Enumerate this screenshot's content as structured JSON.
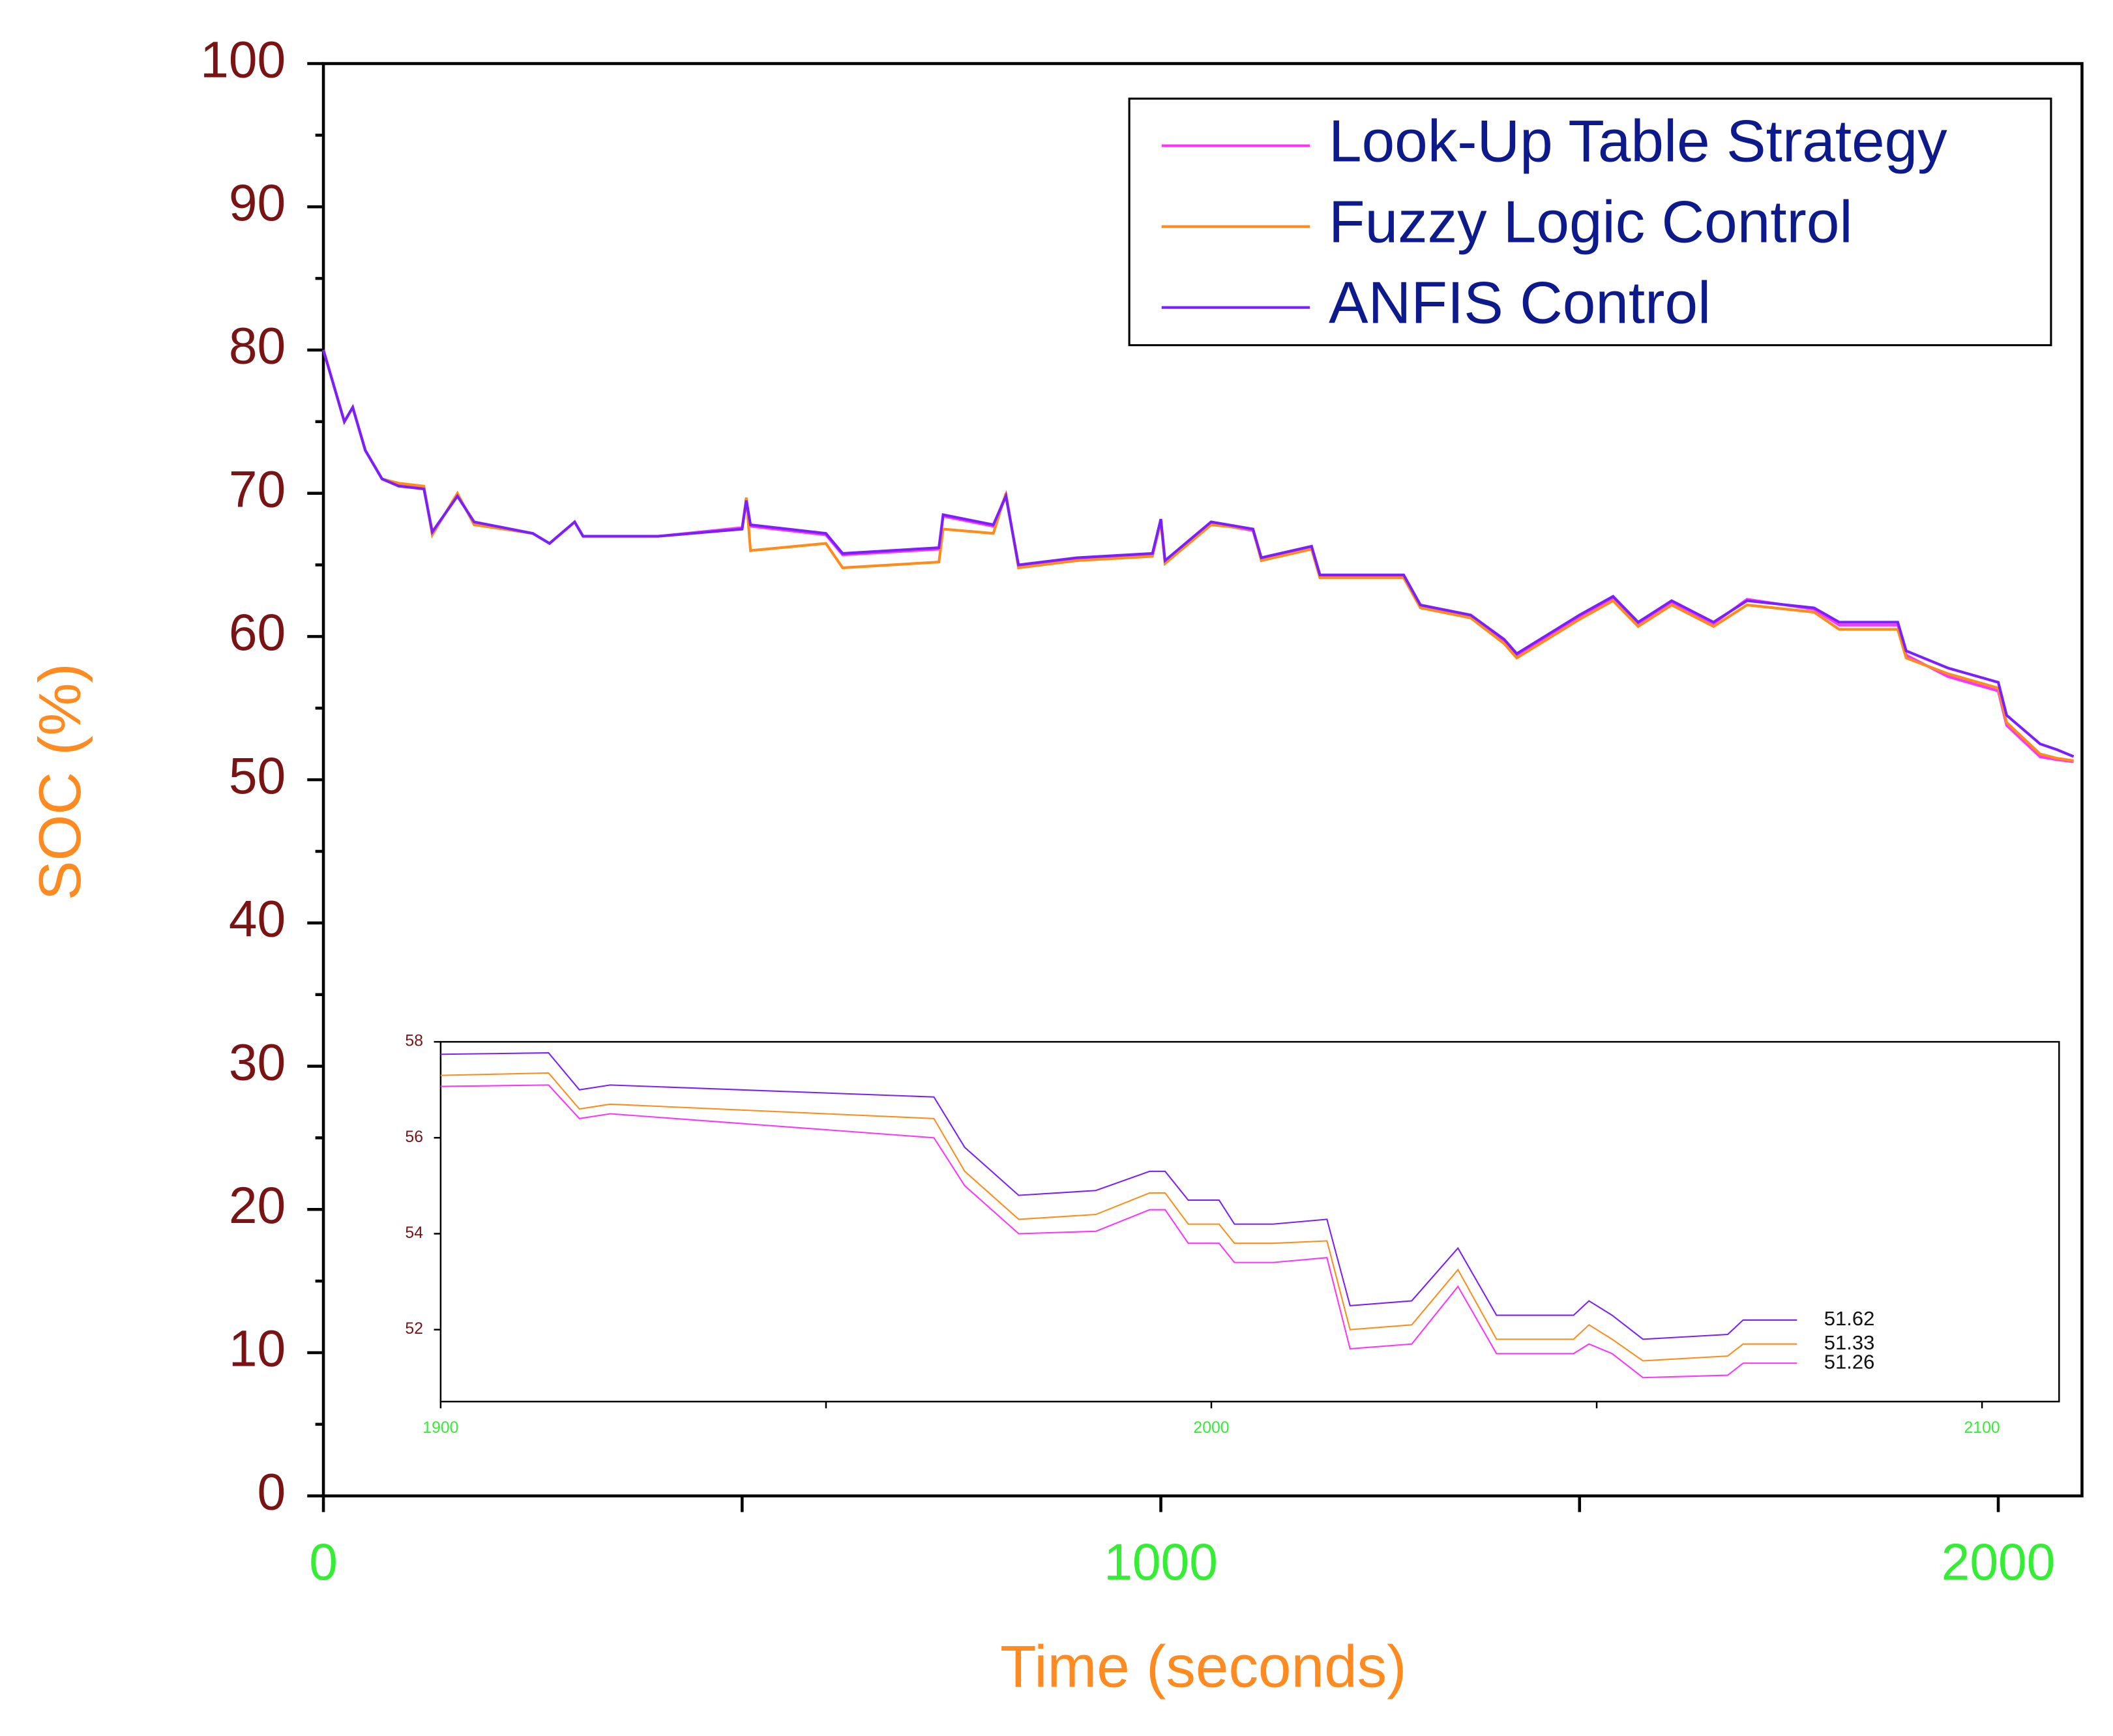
{
  "chart_data": [
    {
      "type": "line",
      "xlabel": "Time (seconds)",
      "ylabel": "SOC (%)",
      "xlim": [
        0,
        2100
      ],
      "ylim": [
        0,
        100
      ],
      "xticks": [
        0,
        1000,
        2000
      ],
      "xminor": [
        500,
        1500
      ],
      "yticks": [
        0,
        10,
        20,
        30,
        40,
        50,
        60,
        70,
        80,
        90,
        100
      ],
      "yminor": [
        5,
        15,
        25,
        35,
        45,
        55,
        65,
        75,
        85,
        95
      ],
      "legend": true,
      "legend_position": "upper right",
      "x": [
        0,
        10,
        25,
        35,
        50,
        70,
        90,
        120,
        130,
        160,
        180,
        250,
        270,
        300,
        310,
        400,
        500,
        505,
        510,
        600,
        620,
        735,
        740,
        800,
        815,
        830,
        900,
        990,
        1000,
        1005,
        1060,
        1110,
        1120,
        1180,
        1190,
        1290,
        1310,
        1370,
        1410,
        1425,
        1450,
        1500,
        1540,
        1570,
        1610,
        1660,
        1700,
        1780,
        1810,
        1880,
        1890,
        1940,
        2000,
        2010,
        2050,
        2070,
        2090
      ],
      "series": [
        {
          "name": "Look-Up Table Strategy",
          "color": "#ff33ff",
          "values": [
            80,
            78,
            75,
            76,
            73,
            71,
            70.6,
            70.4,
            67.2,
            69.9,
            67.9,
            67.2,
            66.5,
            68,
            67,
            67,
            67.6,
            69.6,
            67.7,
            67.1,
            65.7,
            66.1,
            68.4,
            67.7,
            69.9,
            64.9,
            65.4,
            65.7,
            68.1,
            65.2,
            67.9,
            67.4,
            65.4,
            66.2,
            64.2,
            64.2,
            62.1,
            61.4,
            59.7,
            58.6,
            59.6,
            61.4,
            62.7,
            60.9,
            62.4,
            60.9,
            62.6,
            61.9,
            60.8,
            60.8,
            58.7,
            57.2,
            56.2,
            53.8,
            51.6,
            51.4,
            51.26
          ]
        },
        {
          "name": "Fuzzy Logic Control",
          "color": "#ff8c1a",
          "values": [
            80,
            78,
            75,
            76,
            73,
            71,
            70.7,
            70.5,
            67.1,
            70,
            67.8,
            67.2,
            66.5,
            68,
            67,
            67,
            67.5,
            69.7,
            66,
            66.5,
            64.8,
            65.2,
            67.5,
            67.2,
            70,
            64.8,
            65.3,
            65.6,
            68,
            65.1,
            67.8,
            67.5,
            65.3,
            66.1,
            64.1,
            64.1,
            62,
            61.3,
            59.5,
            58.5,
            59.4,
            61.2,
            62.5,
            60.7,
            62.2,
            60.7,
            62.2,
            61.7,
            60.5,
            60.5,
            58.5,
            57.4,
            56.4,
            54,
            51.8,
            51.5,
            51.33
          ]
        },
        {
          "name": "ANFIS Control",
          "color": "#7b1fff",
          "values": [
            80,
            78,
            75,
            76,
            73,
            71,
            70.5,
            70.3,
            67.3,
            69.8,
            68,
            67.2,
            66.5,
            68,
            67,
            67,
            67.5,
            69.5,
            67.8,
            67.2,
            65.8,
            66.2,
            68.5,
            67.8,
            69.8,
            65,
            65.5,
            65.8,
            68.2,
            65.3,
            68,
            67.5,
            65.5,
            66.3,
            64.3,
            64.3,
            62.2,
            61.5,
            59.8,
            58.8,
            59.7,
            61.5,
            62.8,
            61,
            62.5,
            61,
            62.5,
            62,
            61,
            61,
            59,
            57.8,
            56.8,
            54.5,
            52.5,
            52.1,
            51.62
          ]
        }
      ]
    },
    {
      "type": "line",
      "xlim": [
        1900,
        2110
      ],
      "ylim": [
        50.5,
        58
      ],
      "xticks": [
        1900,
        2000,
        2100
      ],
      "xminor": [
        1950,
        2050
      ],
      "yticks": [
        52,
        54,
        56,
        58
      ],
      "x": [
        1900,
        1914,
        1918,
        1922,
        1964,
        1968,
        1975,
        1985,
        1992,
        1994,
        1997,
        2001,
        2003,
        2008,
        2015,
        2018,
        2026,
        2032,
        2037,
        2047,
        2049,
        2052,
        2056,
        2067,
        2069,
        2076
      ],
      "series": [
        {
          "color": "#ff33ff",
          "end_label": 51.26,
          "values": [
            57.07,
            57.1,
            56.4,
            56.5,
            56.0,
            55.0,
            54.0,
            54.05,
            54.5,
            54.5,
            53.8,
            53.8,
            53.4,
            53.4,
            53.5,
            51.6,
            51.7,
            52.9,
            51.5,
            51.5,
            51.7,
            51.5,
            51.0,
            51.05,
            51.3,
            51.3
          ]
        },
        {
          "color": "#ff8c1a",
          "end_label": 51.33,
          "values": [
            57.3,
            57.35,
            56.6,
            56.7,
            56.4,
            55.3,
            54.3,
            54.4,
            54.85,
            54.85,
            54.2,
            54.2,
            53.8,
            53.8,
            53.85,
            52.0,
            52.1,
            53.25,
            51.8,
            51.8,
            52.1,
            51.8,
            51.35,
            51.45,
            51.7,
            51.7
          ]
        },
        {
          "color": "#7b1fff",
          "end_label": 51.62,
          "values": [
            57.74,
            57.77,
            57.0,
            57.1,
            56.85,
            55.8,
            54.8,
            54.9,
            55.3,
            55.3,
            54.7,
            54.7,
            54.2,
            54.2,
            54.3,
            52.5,
            52.6,
            53.7,
            52.3,
            52.3,
            52.6,
            52.3,
            51.8,
            51.9,
            52.2,
            52.2
          ]
        }
      ]
    }
  ]
}
